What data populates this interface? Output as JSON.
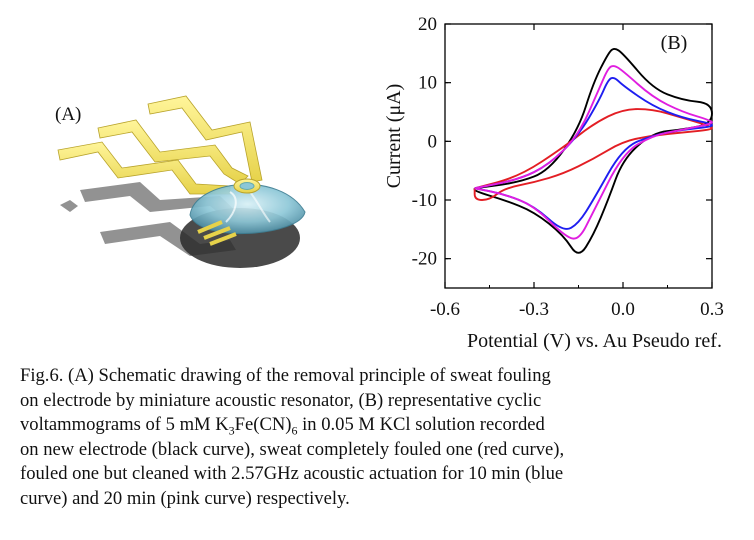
{
  "panel_a": {
    "label": "(A)"
  },
  "chart_data": {
    "type": "line",
    "panel_label": "(B)",
    "xlabel": "Potential (V) vs. Au Pseudo ref.",
    "ylabel": "Current (μA)",
    "xlim": [
      -0.6,
      0.3
    ],
    "ylim": [
      -25,
      20
    ],
    "xticks": [
      -0.6,
      -0.3,
      0.0,
      0.3
    ],
    "xtick_labels": [
      "-0.6",
      "-0.3",
      "0.0",
      "0.3"
    ],
    "yticks": [
      -20,
      -10,
      0,
      10,
      20
    ],
    "ytick_labels": [
      "-20",
      "-10",
      "0",
      "10",
      "20"
    ],
    "grid": false,
    "series": [
      {
        "color": "#000000",
        "x": [
          -0.5,
          -0.35,
          -0.25,
          -0.15,
          -0.1,
          -0.05,
          -0.03,
          0.0,
          0.1,
          0.2,
          0.3,
          0.3,
          0.2,
          0.1,
          0.0,
          -0.05,
          -0.1,
          -0.15,
          -0.2,
          -0.3,
          -0.4,
          -0.5,
          -0.5
        ],
        "y": [
          -8,
          -7,
          -5,
          2,
          10,
          15,
          16,
          15,
          9,
          7,
          6.5,
          3,
          2,
          1.5,
          -3,
          -10,
          -16,
          -20,
          -16,
          -12,
          -10,
          -8.5,
          -8
        ]
      },
      {
        "color": "#e31e24",
        "x": [
          -0.5,
          -0.35,
          -0.2,
          -0.1,
          0.0,
          0.1,
          0.2,
          0.3,
          0.3,
          0.2,
          0.1,
          0.0,
          -0.1,
          -0.2,
          -0.3,
          -0.4,
          -0.45,
          -0.5,
          -0.5
        ],
        "y": [
          -8,
          -6,
          -1,
          3,
          5.5,
          5.5,
          4,
          2.5,
          2,
          1.5,
          1,
          0,
          -3,
          -5.5,
          -7,
          -8,
          -10,
          -10,
          -8
        ]
      },
      {
        "color": "#1e1ef0",
        "x": [
          -0.5,
          -0.35,
          -0.25,
          -0.15,
          -0.08,
          -0.05,
          -0.03,
          0.0,
          0.1,
          0.2,
          0.3,
          0.3,
          0.2,
          0.1,
          0.0,
          -0.1,
          -0.15,
          -0.2,
          -0.3,
          -0.4,
          -0.5,
          -0.5
        ],
        "y": [
          -8,
          -6.5,
          -4,
          1,
          7,
          10.5,
          11,
          9.5,
          6,
          4,
          3,
          2.5,
          2,
          1,
          -1,
          -10,
          -14,
          -15.5,
          -11,
          -9,
          -8,
          -8
        ]
      },
      {
        "color": "#e01ee0",
        "x": [
          -0.5,
          -0.35,
          -0.25,
          -0.15,
          -0.08,
          -0.05,
          -0.03,
          0.0,
          0.1,
          0.2,
          0.3,
          0.3,
          0.2,
          0.1,
          0.0,
          -0.1,
          -0.15,
          -0.2,
          -0.3,
          -0.4,
          -0.5,
          -0.5
        ],
        "y": [
          -8,
          -6.5,
          -4,
          1,
          9,
          12.5,
          13,
          12,
          7.5,
          5,
          3.5,
          3,
          2,
          1,
          -2,
          -12,
          -17,
          -16,
          -11,
          -9,
          -8,
          -8
        ]
      }
    ]
  },
  "caption": {
    "line1": "Fig.6. (A) Schematic drawing of the removal principle of sweat fouling",
    "line2": "on electrode by miniature acoustic resonator, (B) representative cyclic",
    "line3_pre": "voltammograms of 5 mM K",
    "line3_sub1": "3",
    "line3_mid": "Fe(CN)",
    "line3_sub2": "6",
    "line3_post": " in 0.05 M KCl solution recorded",
    "line4": "on new electrode (black curve), sweat completely fouled one (red curve),",
    "line5": "fouled one but cleaned with 2.57GHz acoustic actuation for 10 min (blue",
    "line6": "curve) and 20 min (pink curve) respectively."
  }
}
